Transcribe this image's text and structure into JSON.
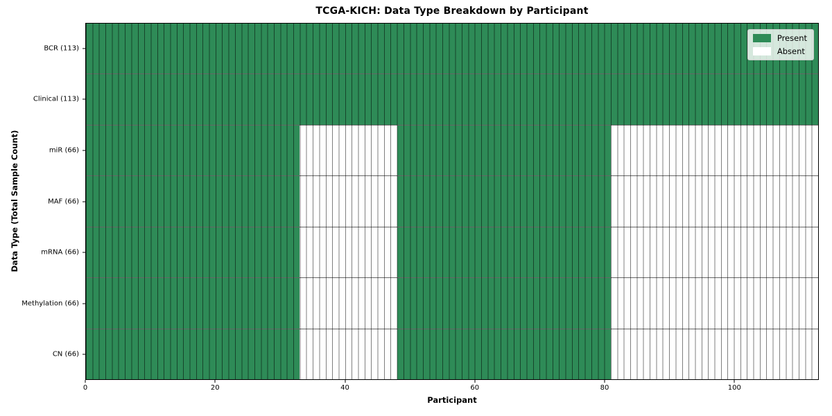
{
  "chart_data": {
    "type": "heatmap",
    "title": "TCGA-KICH: Data Type Breakdown by Participant",
    "xlabel": "Participant",
    "ylabel": "Data Type (Total Sample Count)",
    "xlim": [
      0,
      113
    ],
    "x_ticks": [
      0,
      20,
      40,
      60,
      80,
      100
    ],
    "n_participants": 113,
    "legend_position": "upper right",
    "grid": "per-cell borders",
    "colors": {
      "present": "#2e8b57",
      "absent": "#ffffff",
      "cell_border": "rgba(0,0,0,0.50)",
      "row_border": "rgba(0,0,0,0.60)",
      "frame": "#000000"
    },
    "legend": [
      {
        "label": "Present",
        "state": "present"
      },
      {
        "label": "Absent",
        "state": "absent"
      }
    ],
    "rows": [
      {
        "label": "BCR (113)",
        "present_count": 113,
        "segments": [
          {
            "state": "present",
            "from": 0,
            "to": 113
          }
        ]
      },
      {
        "label": "Clinical (113)",
        "present_count": 113,
        "segments": [
          {
            "state": "present",
            "from": 0,
            "to": 113
          }
        ]
      },
      {
        "label": "miR (66)",
        "present_count": 66,
        "segments": [
          {
            "state": "present",
            "from": 0,
            "to": 33
          },
          {
            "state": "absent",
            "from": 33,
            "to": 48
          },
          {
            "state": "present",
            "from": 48,
            "to": 81
          },
          {
            "state": "absent",
            "from": 81,
            "to": 113
          }
        ]
      },
      {
        "label": "MAF (66)",
        "present_count": 66,
        "segments": [
          {
            "state": "present",
            "from": 0,
            "to": 33
          },
          {
            "state": "absent",
            "from": 33,
            "to": 48
          },
          {
            "state": "present",
            "from": 48,
            "to": 81
          },
          {
            "state": "absent",
            "from": 81,
            "to": 113
          }
        ]
      },
      {
        "label": "mRNA (66)",
        "present_count": 66,
        "segments": [
          {
            "state": "present",
            "from": 0,
            "to": 33
          },
          {
            "state": "absent",
            "from": 33,
            "to": 48
          },
          {
            "state": "present",
            "from": 48,
            "to": 81
          },
          {
            "state": "absent",
            "from": 81,
            "to": 113
          }
        ]
      },
      {
        "label": "Methylation (66)",
        "present_count": 66,
        "segments": [
          {
            "state": "present",
            "from": 0,
            "to": 33
          },
          {
            "state": "absent",
            "from": 33,
            "to": 48
          },
          {
            "state": "present",
            "from": 48,
            "to": 81
          },
          {
            "state": "absent",
            "from": 81,
            "to": 113
          }
        ]
      },
      {
        "label": "CN (66)",
        "present_count": 66,
        "segments": [
          {
            "state": "present",
            "from": 0,
            "to": 33
          },
          {
            "state": "absent",
            "from": 33,
            "to": 48
          },
          {
            "state": "present",
            "from": 48,
            "to": 81
          },
          {
            "state": "absent",
            "from": 81,
            "to": 113
          }
        ]
      }
    ]
  }
}
